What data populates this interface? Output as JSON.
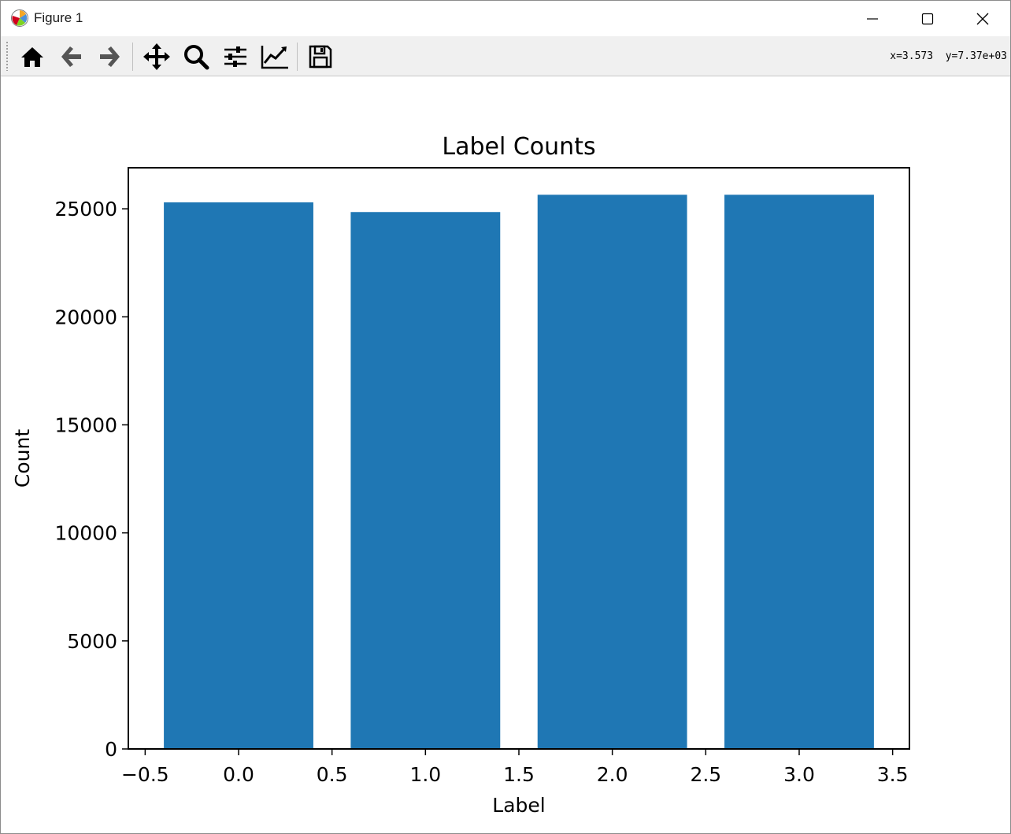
{
  "window": {
    "title": "Figure 1",
    "controls": [
      "minimize",
      "maximize",
      "close"
    ]
  },
  "toolbar": {
    "buttons": [
      {
        "name": "home-icon",
        "tooltip": "Reset original view"
      },
      {
        "name": "back-icon",
        "tooltip": "Back to previous view"
      },
      {
        "name": "forward-icon",
        "tooltip": "Forward to next view"
      },
      {
        "name": "pan-icon",
        "tooltip": "Pan axes"
      },
      {
        "name": "zoom-icon",
        "tooltip": "Zoom to rectangle"
      },
      {
        "name": "configure-subplots-icon",
        "tooltip": "Configure subplots"
      },
      {
        "name": "edit-axis-icon",
        "tooltip": "Edit axis"
      },
      {
        "name": "save-icon",
        "tooltip": "Save the figure"
      }
    ],
    "coords": "x=3.573  y=7.37e+03"
  },
  "chart_data": {
    "type": "bar",
    "title": "Label Counts",
    "xlabel": "Label",
    "ylabel": "Count",
    "x": [
      0,
      1,
      2,
      3
    ],
    "values": [
      25300,
      24850,
      25650,
      25650
    ],
    "bar_width": 0.8,
    "xlim": [
      -0.59,
      3.59
    ],
    "ylim": [
      0,
      26900
    ],
    "xticks": [
      -0.5,
      0.0,
      0.5,
      1.0,
      1.5,
      2.0,
      2.5,
      3.0,
      3.5
    ],
    "xtick_labels": [
      "−0.5",
      "0.0",
      "0.5",
      "1.0",
      "1.5",
      "2.0",
      "2.5",
      "3.0",
      "3.5"
    ],
    "yticks": [
      0,
      5000,
      10000,
      15000,
      20000,
      25000
    ],
    "ytick_labels": [
      "0",
      "5000",
      "10000",
      "15000",
      "20000",
      "25000"
    ],
    "bar_color": "#1f77b4",
    "grid": false,
    "legend": "none"
  }
}
